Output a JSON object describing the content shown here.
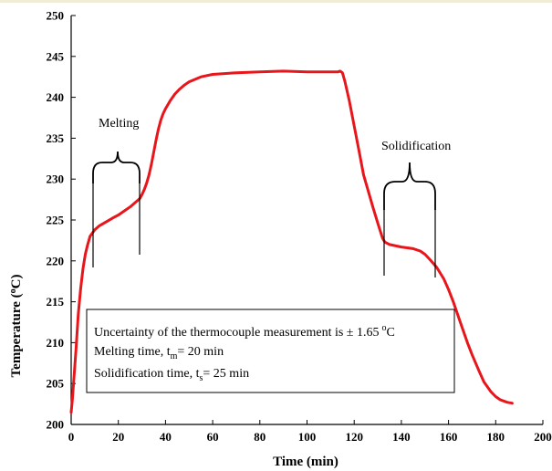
{
  "chart_data": {
    "type": "line",
    "xlabel": "Time (min)",
    "ylabel": "Temperature (oC)",
    "xlim": [
      0,
      200
    ],
    "ylim": [
      200,
      250
    ],
    "xticks": [
      0,
      20,
      40,
      60,
      80,
      100,
      120,
      140,
      160,
      180,
      200
    ],
    "yticks": [
      200,
      205,
      210,
      215,
      220,
      225,
      230,
      235,
      240,
      245,
      250
    ],
    "grid": false,
    "series": [
      {
        "color": "#e8161b",
        "x": [
          0,
          0.5,
          1,
          2,
          3,
          4,
          5,
          6,
          7,
          8,
          10,
          12,
          15,
          18,
          20,
          22,
          25,
          27,
          29,
          30,
          31,
          32,
          33,
          34,
          35,
          36,
          37,
          38,
          39,
          40,
          42,
          44,
          46,
          48,
          50,
          55,
          60,
          65,
          70,
          80,
          90,
          100,
          105,
          110,
          113,
          114,
          115,
          116,
          118,
          120,
          122,
          124,
          126,
          128,
          130,
          132,
          133,
          135,
          140,
          145,
          148,
          150,
          152,
          155,
          158,
          160,
          162,
          165,
          168,
          170,
          173,
          175,
          178,
          180,
          182,
          185,
          187
        ],
        "y": [
          201.5,
          203.0,
          205.0,
          209.0,
          213.5,
          216.5,
          219.0,
          220.8,
          222.0,
          223.0,
          223.8,
          224.3,
          224.8,
          225.3,
          225.6,
          226.0,
          226.6,
          227.1,
          227.6,
          228.1,
          228.7,
          229.5,
          230.5,
          231.8,
          233.3,
          234.8,
          236.1,
          237.2,
          238.0,
          238.6,
          239.6,
          240.4,
          241.0,
          241.5,
          241.9,
          242.5,
          242.8,
          242.9,
          243.0,
          243.1,
          243.2,
          243.1,
          243.1,
          243.1,
          243.1,
          243.2,
          243.0,
          242.0,
          239.5,
          236.5,
          233.5,
          230.5,
          228.5,
          226.5,
          224.6,
          222.8,
          222.3,
          222.0,
          221.7,
          221.5,
          221.2,
          220.8,
          220.2,
          219.2,
          217.8,
          216.5,
          215.0,
          212.5,
          210.0,
          208.5,
          206.5,
          205.2,
          204.0,
          203.4,
          203.0,
          202.7,
          202.6
        ]
      }
    ],
    "annotations": {
      "melting_label": "Melting",
      "solidification_label": "Solidification"
    },
    "info_box": {
      "line1": "Uncertainty of the thermocouple measurement is ± 1.65",
      "line1_sup": "o",
      "line1_unit": "C",
      "line2_prefix": "Melting time, t",
      "line2_sub": "m",
      "line2_suffix": "= 20 min",
      "line3_prefix": "Solidification time, t",
      "line3_sub": "s",
      "line3_suffix": "= 25 min"
    }
  }
}
